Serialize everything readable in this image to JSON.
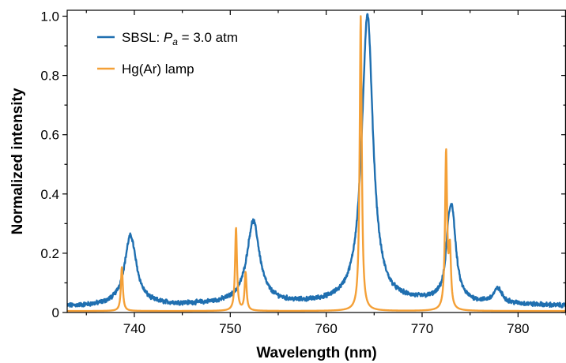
{
  "chart_data": {
    "type": "line",
    "xlabel": "Wavelength (nm)",
    "ylabel": "Normalized intensity",
    "xlim": [
      733,
      785
    ],
    "ylim": [
      0,
      1.02
    ],
    "xticks": [
      740,
      750,
      760,
      770,
      780
    ],
    "yticks": [
      0,
      0.2,
      0.4,
      0.6,
      0.8,
      1.0
    ],
    "xtick_labels": [
      "740",
      "750",
      "760",
      "770",
      "780"
    ],
    "ytick_labels": [
      "0",
      "0.2",
      "0.4",
      "0.6",
      "0.8",
      "1.0"
    ],
    "legend": {
      "position": "top-left",
      "entries": [
        {
          "prefix": "SBSL: ",
          "italic": "P",
          "sub": "a",
          "suffix": " = 3.0 atm",
          "color": "#1f6fb0"
        },
        {
          "prefix": "Hg(Ar) lamp",
          "italic": "",
          "sub": "",
          "suffix": "",
          "color": "#f4a037"
        }
      ]
    },
    "series": [
      {
        "name": "SBSL: Pa = 3.0 atm",
        "color": "#1f6fb0",
        "baseline": [
          [
            733,
            0.02
          ],
          [
            745,
            0.025
          ],
          [
            752,
            0.03
          ],
          [
            757,
            0.028
          ],
          [
            762,
            0.03
          ],
          [
            765,
            0.03
          ],
          [
            770,
            0.035
          ],
          [
            775,
            0.03
          ],
          [
            785,
            0.022
          ]
        ],
        "peaks": [
          {
            "center": 739.6,
            "height": 0.235,
            "width": 0.75
          },
          {
            "center": 752.4,
            "height": 0.275,
            "width": 0.8
          },
          {
            "center": 764.3,
            "height": 0.975,
            "width": 0.7
          },
          {
            "center": 773.1,
            "height": 0.305,
            "width": 0.5
          },
          {
            "center": 772.7,
            "height": 0.08,
            "width": 0.25
          },
          {
            "center": 777.9,
            "height": 0.048,
            "width": 0.55
          }
        ]
      },
      {
        "name": "Hg(Ar) lamp",
        "color": "#f4a037",
        "baseline": [
          [
            733,
            0.005
          ],
          [
            785,
            0.005
          ]
        ],
        "peaks": [
          {
            "center": 738.7,
            "height": 0.148,
            "width": 0.12
          },
          {
            "center": 750.6,
            "height": 0.28,
            "width": 0.12
          },
          {
            "center": 751.6,
            "height": 0.128,
            "width": 0.12
          },
          {
            "center": 763.6,
            "height": 0.995,
            "width": 0.13
          },
          {
            "center": 772.5,
            "height": 0.53,
            "width": 0.13
          },
          {
            "center": 772.9,
            "height": 0.19,
            "width": 0.13
          }
        ]
      }
    ]
  }
}
